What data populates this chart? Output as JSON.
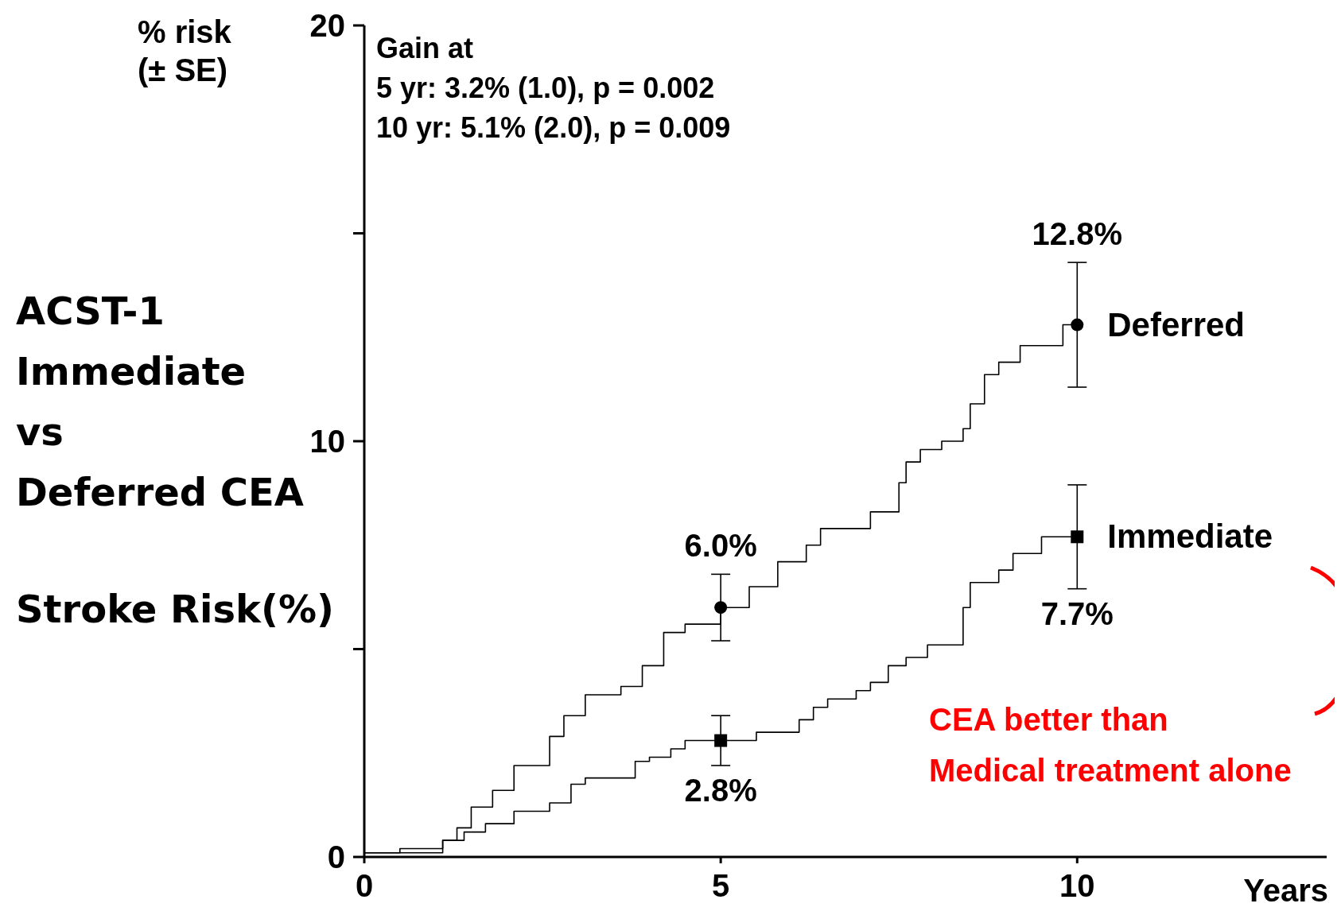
{
  "chart_data": {
    "type": "step",
    "title": "ACST-1\nImmediate\nvs\nDeferred CEA",
    "subtitle": "Stroke Risk(%)",
    "xlabel": "Years",
    "ylabel": "% risk\n(± SE)",
    "annotations": [
      "Gain at\n5 yr: 3.2% (1.0), p = 0.002\n10 yr: 5.1% (2.0), p = 0.009",
      "CEA better than\nMedical treatment alone"
    ],
    "xlim": [
      0,
      13.5
    ],
    "xticks": [
      0,
      5,
      10
    ],
    "ylim": [
      0,
      20
    ],
    "yticks": [
      0,
      {
        "value": 5,
        "label": null
      },
      10,
      {
        "value": 15,
        "label": null
      },
      20
    ],
    "line_style": "solid",
    "marker": "none",
    "series": [
      {
        "color": "#000000",
        "x": [
          0,
          0.5,
          1.1,
          1.3,
          1.5,
          1.8,
          2.1,
          2.6,
          2.8,
          3.1,
          3.6,
          3.9,
          4.2,
          4.5,
          5,
          5.4,
          5.8,
          6.2,
          6.4,
          7.1,
          7.5,
          7.6,
          7.8,
          8.1,
          8.4,
          8.5,
          8.7,
          8.9,
          9.2,
          9.8,
          10
        ],
        "values": [
          0.1,
          0.2,
          0.4,
          0.7,
          1.2,
          1.6,
          2.2,
          2.9,
          3.4,
          3.9,
          4.1,
          4.6,
          5.4,
          5.6,
          6.0,
          6.5,
          7.1,
          7.5,
          7.9,
          8.3,
          9.0,
          9.5,
          9.8,
          10.0,
          10.3,
          10.9,
          11.6,
          11.9,
          12.3,
          12.8,
          12.8
        ]
      },
      {
        "color": "#000000",
        "x": [
          0,
          1.1,
          1.4,
          1.7,
          2.1,
          2.6,
          2.9,
          3.1,
          3.8,
          4.0,
          4.3,
          4.5,
          5,
          5.5,
          6.1,
          6.3,
          6.5,
          6.9,
          7.1,
          7.35,
          7.6,
          7.9,
          8.4,
          8.5,
          8.9,
          9.1,
          9.5,
          10
        ],
        "values": [
          0.1,
          0.4,
          0.6,
          0.8,
          1.1,
          1.3,
          1.75,
          1.9,
          2.3,
          2.4,
          2.6,
          2.8,
          2.8,
          3.0,
          3.3,
          3.6,
          3.8,
          4.0,
          4.2,
          4.6,
          4.8,
          5.1,
          6.0,
          6.6,
          6.9,
          7.3,
          7.7,
          7.7
        ]
      },
      {
        "type": "scatter",
        "name": "Deferred",
        "color": "#000000",
        "marker": "circle",
        "x": [
          5,
          10
        ],
        "values": [
          6.0,
          12.8
        ],
        "errors": [
          0.8,
          1.5
        ],
        "value_labels": [
          "6.0%",
          "12.8%"
        ]
      },
      {
        "type": "scatter",
        "name": "Immediate",
        "color": "#000000",
        "marker": "square",
        "x": [
          5,
          10
        ],
        "values": [
          2.8,
          7.7
        ],
        "errors": [
          0.6,
          1.25
        ],
        "value_labels": [
          "2.8%",
          "7.7%"
        ]
      }
    ]
  }
}
